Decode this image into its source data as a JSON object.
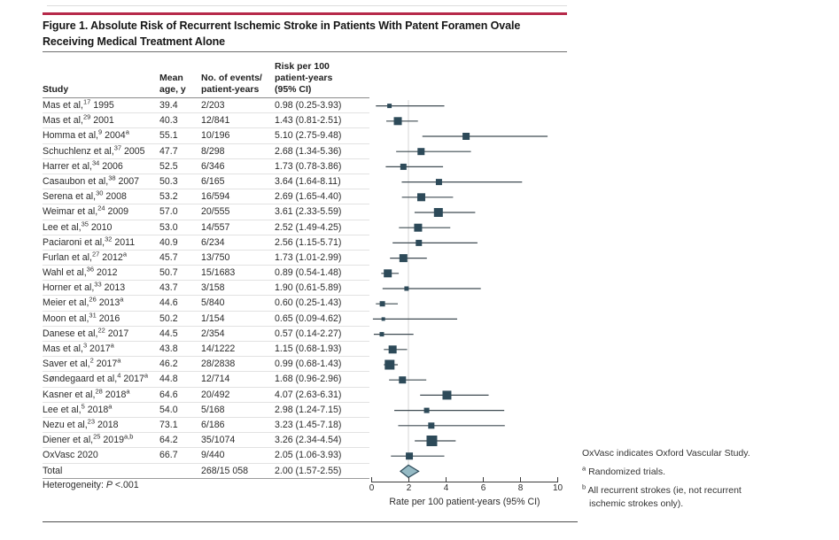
{
  "figure": {
    "title_line1": "Figure 1. Absolute Risk of Recurrent Ischemic Stroke in Patients With Patent Foramen Ovale",
    "title_line2": "Receiving Medical Treatment Alone",
    "heterogeneity": {
      "prefix": "Heterogeneity: ",
      "stat": "P",
      "rest": " <.001"
    }
  },
  "table": {
    "headers": {
      "study": "Study",
      "age": "Mean\nage, y",
      "events": "No. of events/\npatient-years",
      "risk": "Risk per 100\npatient-years\n(95% CI)"
    }
  },
  "chart_data": {
    "type": "forest",
    "xlabel": "Rate per 100 patient-years (95% CI)",
    "xlim": [
      0,
      10
    ],
    "xticks": [
      0,
      2,
      4,
      6,
      8,
      10
    ],
    "reference_line": 2.0,
    "studies": [
      {
        "name": "Mas et al,",
        "ref": "17",
        "year": "1995",
        "flag": "",
        "age": "39.4",
        "events": "2/203",
        "risk": "0.98 (0.25-3.93)",
        "est": 0.98,
        "lo": 0.25,
        "hi": 3.93,
        "size": 5
      },
      {
        "name": "Mas et al,",
        "ref": "29",
        "year": "2001",
        "flag": "",
        "age": "40.3",
        "events": "12/841",
        "risk": "1.43 (0.81-2.51)",
        "est": 1.43,
        "lo": 0.81,
        "hi": 2.51,
        "size": 9
      },
      {
        "name": "Homma et al,",
        "ref": "9",
        "year": "2004",
        "flag": "a",
        "age": "55.1",
        "events": "10/196",
        "risk": "5.10 (2.75-9.48)",
        "est": 5.1,
        "lo": 2.75,
        "hi": 9.48,
        "size": 8
      },
      {
        "name": "Schuchlenz et al,",
        "ref": "37",
        "year": "2005",
        "flag": "",
        "age": "47.7",
        "events": "8/298",
        "risk": "2.68 (1.34-5.36)",
        "est": 2.68,
        "lo": 1.34,
        "hi": 5.36,
        "size": 8
      },
      {
        "name": "Harrer et al,",
        "ref": "34",
        "year": "2006",
        "flag": "",
        "age": "52.5",
        "events": "6/346",
        "risk": "1.73 (0.78-3.86)",
        "est": 1.73,
        "lo": 0.78,
        "hi": 3.86,
        "size": 7
      },
      {
        "name": "Casaubon et al,",
        "ref": "38",
        "year": "2007",
        "flag": "",
        "age": "50.3",
        "events": "6/165",
        "risk": "3.64 (1.64-8.11)",
        "est": 3.64,
        "lo": 1.64,
        "hi": 8.11,
        "size": 7
      },
      {
        "name": "Serena et al,",
        "ref": "30",
        "year": "2008",
        "flag": "",
        "age": "53.2",
        "events": "16/594",
        "risk": "2.69 (1.65-4.40)",
        "est": 2.69,
        "lo": 1.65,
        "hi": 4.4,
        "size": 9
      },
      {
        "name": "Weimar et al,",
        "ref": "24",
        "year": "2009",
        "flag": "",
        "age": "57.0",
        "events": "20/555",
        "risk": "3.61 (2.33-5.59)",
        "est": 3.61,
        "lo": 2.33,
        "hi": 5.59,
        "size": 10
      },
      {
        "name": "Lee et al,",
        "ref": "35",
        "year": "2010",
        "flag": "",
        "age": "53.0",
        "events": "14/557",
        "risk": "2.52 (1.49-4.25)",
        "est": 2.52,
        "lo": 1.49,
        "hi": 4.25,
        "size": 9
      },
      {
        "name": "Paciaroni et al,",
        "ref": "32",
        "year": "2011",
        "flag": "",
        "age": "40.9",
        "events": "6/234",
        "risk": "2.56 (1.15-5.71)",
        "est": 2.56,
        "lo": 1.15,
        "hi": 5.71,
        "size": 7
      },
      {
        "name": "Furlan et al,",
        "ref": "27",
        "year": "2012",
        "flag": "a",
        "age": "45.7",
        "events": "13/750",
        "risk": "1.73 (1.01-2.99)",
        "est": 1.73,
        "lo": 1.01,
        "hi": 2.99,
        "size": 9
      },
      {
        "name": "Wahl et al,",
        "ref": "36",
        "year": "2012",
        "flag": "",
        "age": "50.7",
        "events": "15/1683",
        "risk": "0.89 (0.54-1.48)",
        "est": 0.89,
        "lo": 0.54,
        "hi": 1.48,
        "size": 9
      },
      {
        "name": "Horner et al,",
        "ref": "33",
        "year": "2013",
        "flag": "",
        "age": "43.7",
        "events": "3/158",
        "risk": "1.90 (0.61-5.89)",
        "est": 1.9,
        "lo": 0.61,
        "hi": 5.89,
        "size": 5
      },
      {
        "name": "Meier et al,",
        "ref": "26",
        "year": "2013",
        "flag": "a",
        "age": "44.6",
        "events": "5/840",
        "risk": "0.60 (0.25-1.43)",
        "est": 0.6,
        "lo": 0.25,
        "hi": 1.43,
        "size": 6
      },
      {
        "name": "Moon et al,",
        "ref": "31",
        "year": "2016",
        "flag": "",
        "age": "50.2",
        "events": "1/154",
        "risk": "0.65 (0.09-4.62)",
        "est": 0.65,
        "lo": 0.09,
        "hi": 4.62,
        "size": 4
      },
      {
        "name": "Danese et al,",
        "ref": "22",
        "year": "2017",
        "flag": "",
        "age": "44.5",
        "events": "2/354",
        "risk": "0.57 (0.14-2.27)",
        "est": 0.57,
        "lo": 0.14,
        "hi": 2.27,
        "size": 5
      },
      {
        "name": "Mas et al,",
        "ref": "3",
        "year": "2017",
        "flag": "a",
        "age": "43.8",
        "events": "14/1222",
        "risk": "1.15 (0.68-1.93)",
        "est": 1.15,
        "lo": 0.68,
        "hi": 1.93,
        "size": 9
      },
      {
        "name": "Saver et al,",
        "ref": "2",
        "year": "2017",
        "flag": "a",
        "age": "46.2",
        "events": "28/2838",
        "risk": "0.99 (0.68-1.43)",
        "est": 0.99,
        "lo": 0.68,
        "hi": 1.43,
        "size": 11
      },
      {
        "name": "Søndegaard et al,",
        "ref": "4",
        "year": "2017",
        "flag": "a",
        "age": "44.8",
        "events": "12/714",
        "risk": "1.68 (0.96-2.96)",
        "est": 1.68,
        "lo": 0.96,
        "hi": 2.96,
        "size": 8
      },
      {
        "name": "Kasner et al,",
        "ref": "28",
        "year": "2018",
        "flag": "a",
        "age": "64.6",
        "events": "20/492",
        "risk": "4.07 (2.63-6.31)",
        "est": 4.07,
        "lo": 2.63,
        "hi": 6.31,
        "size": 10
      },
      {
        "name": "Lee et al,",
        "ref": "5",
        "year": "2018",
        "flag": "a",
        "age": "54.0",
        "events": "5/168",
        "risk": "2.98 (1.24-7.15)",
        "est": 2.98,
        "lo": 1.24,
        "hi": 7.15,
        "size": 6
      },
      {
        "name": "Nezu et al,",
        "ref": "23",
        "year": "2018",
        "flag": "",
        "age": "73.1",
        "events": "6/186",
        "risk": "3.23 (1.45-7.18)",
        "est": 3.23,
        "lo": 1.45,
        "hi": 7.18,
        "size": 7
      },
      {
        "name": "Diener et al,",
        "ref": "25",
        "year": "2019",
        "flag": "a,b",
        "age": "64.2",
        "events": "35/1074",
        "risk": "3.26 (2.34-4.54)",
        "est": 3.26,
        "lo": 2.34,
        "hi": 4.54,
        "size": 12
      },
      {
        "name": "OxVasc",
        "ref": "",
        "year": "2020",
        "flag": "",
        "age": "66.7",
        "events": "9/440",
        "risk": "2.05 (1.06-3.93)",
        "est": 2.05,
        "lo": 1.06,
        "hi": 3.93,
        "size": 8
      }
    ],
    "total": {
      "label": "Total",
      "events": "268/15 058",
      "risk": "2.00 (1.57-2.55)",
      "est": 2.0,
      "lo": 1.57,
      "hi": 2.55
    }
  },
  "notes": [
    {
      "marker": "",
      "text": "OxVasc indicates Oxford Vascular Study."
    },
    {
      "marker": "a",
      "text": "Randomized trials."
    },
    {
      "marker": "b",
      "text": "All recurrent strokes (ie, not recurrent ischemic strokes only)."
    }
  ],
  "colors": {
    "accent_red": "#b6294a",
    "marker": "#2d4a59",
    "ci_line": "#3f4b52",
    "diamond_fill": "#95bac4",
    "reference_line": "#d6d6d6"
  }
}
